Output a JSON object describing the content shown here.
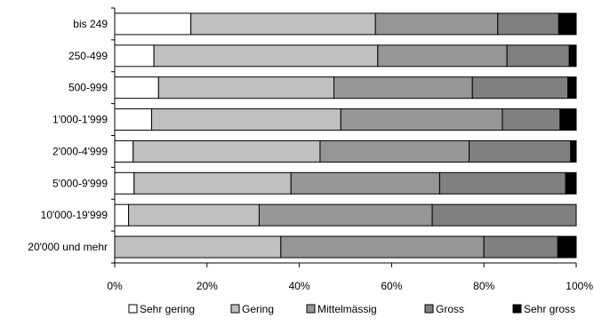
{
  "chart_data": {
    "type": "bar",
    "orientation": "horizontal",
    "stacked": "100%",
    "categories": [
      "bis 249",
      "250-499",
      "500-999",
      "1'000-1'999",
      "2'000-4'999",
      "5'000-9'999",
      "10'000-19'999",
      "20'000 und mehr"
    ],
    "series": [
      {
        "name": "Sehr gering",
        "color": "#ffffff",
        "values": [
          16.5,
          8.5,
          9.5,
          8.0,
          4.0,
          4.2,
          3.0,
          0.0
        ]
      },
      {
        "name": "Gering",
        "color": "#c0c0c0",
        "values": [
          40.0,
          48.5,
          38.0,
          41.0,
          40.5,
          34.0,
          28.3,
          36.0
        ]
      },
      {
        "name": "Mittelmässig",
        "color": "#969696",
        "values": [
          26.5,
          28.0,
          30.0,
          35.0,
          32.3,
          32.2,
          37.5,
          44.0
        ]
      },
      {
        "name": "Gross",
        "color": "#808080",
        "values": [
          13.2,
          13.5,
          20.7,
          12.5,
          22.0,
          27.3,
          31.2,
          16.0
        ]
      },
      {
        "name": "Sehr gross",
        "color": "#000000",
        "values": [
          3.8,
          1.5,
          1.8,
          3.5,
          1.2,
          2.3,
          0.0,
          4.0
        ]
      }
    ],
    "xticks": [
      "0%",
      "20%",
      "40%",
      "60%",
      "80%",
      "100%"
    ],
    "xlim": [
      0,
      100
    ],
    "grid": false,
    "legend": "bottom"
  }
}
